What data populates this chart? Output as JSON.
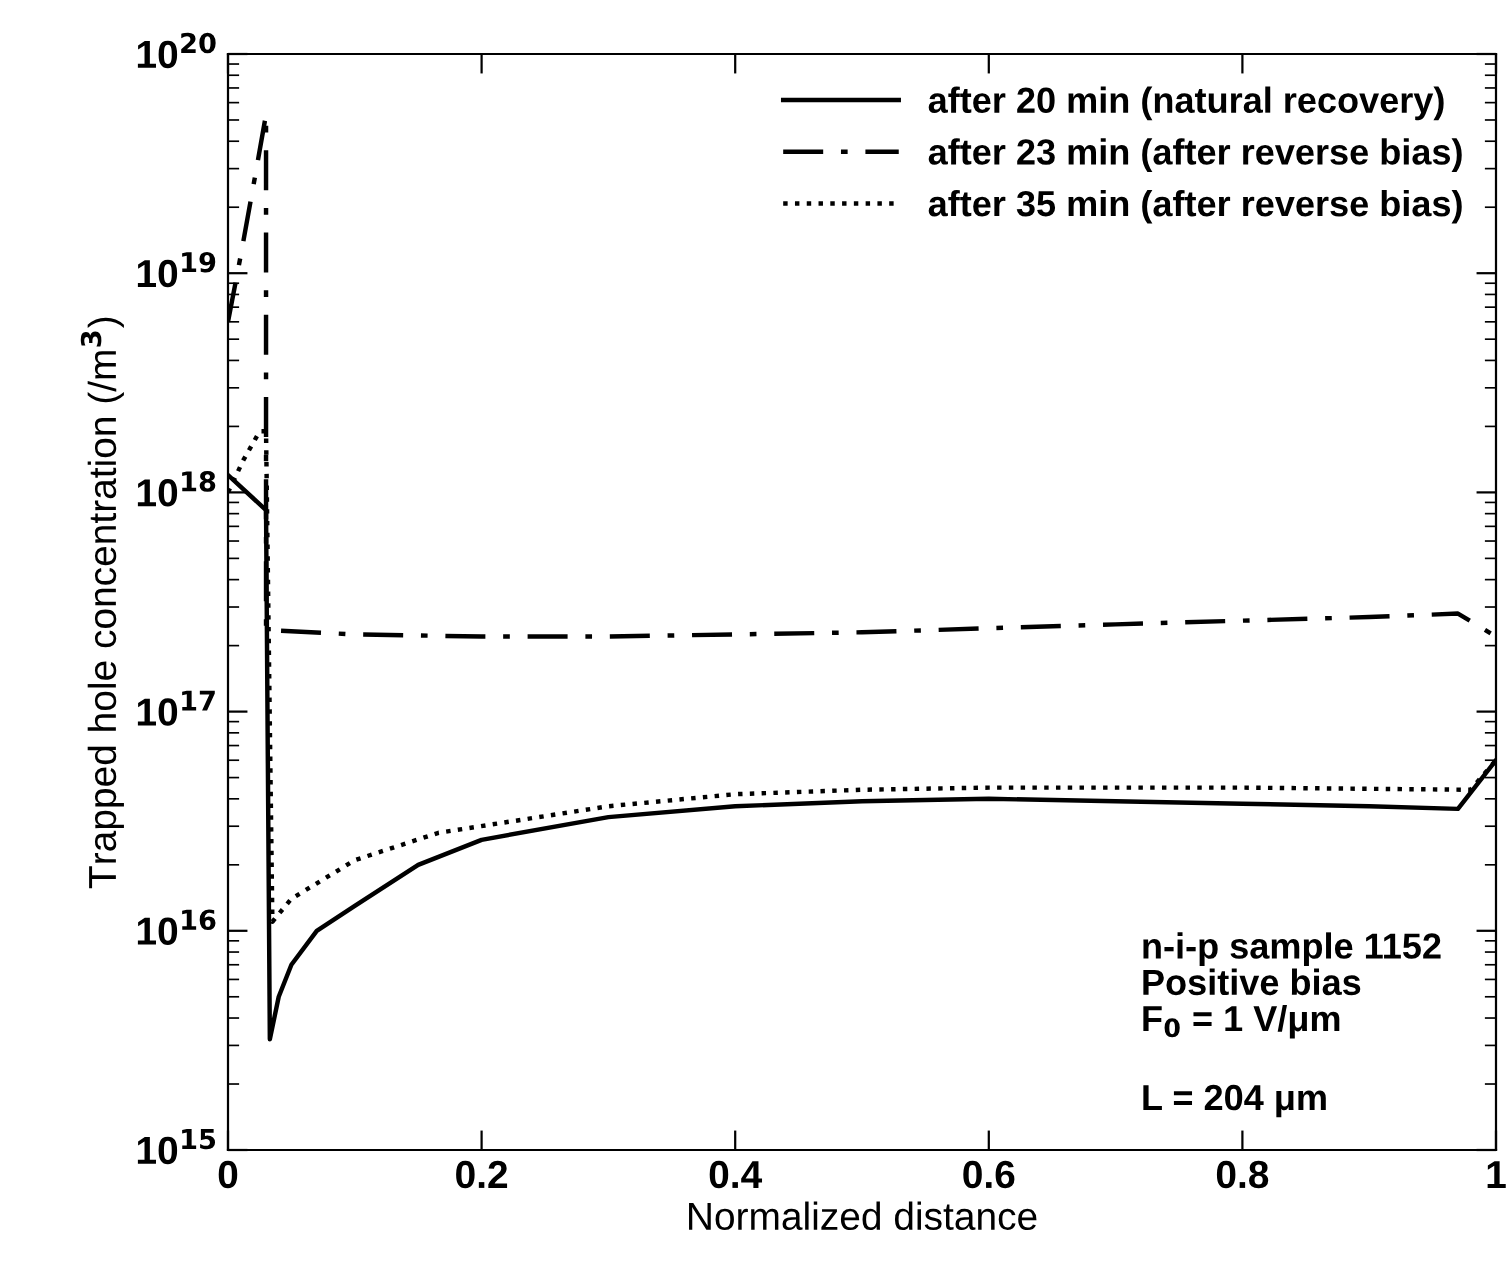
{
  "chart_data": {
    "type": "line",
    "xlabel": "Normalized distance",
    "ylabel": "Trapped hole concentration (/m$^{3}$)",
    "log": "y",
    "xlim": [
      0,
      1
    ],
    "xticks": [
      0,
      0.2,
      0.4,
      0.6,
      0.8,
      1
    ],
    "ylim": [
      1000000000000000.0,
      1e+20
    ],
    "yticks": [
      {
        "value": 1000000000000000.0,
        "label": "10$^{15}$"
      },
      {
        "value": 1e+16,
        "label": "10$^{16}$"
      },
      {
        "value": 1e+17,
        "label": "10$^{17}$"
      },
      {
        "value": 1e+18,
        "label": "10$^{18}$"
      },
      {
        "value": 1e+19,
        "label": "10$^{19}$"
      },
      {
        "value": 1e+20,
        "label": "10$^{20}$"
      }
    ],
    "grid": false,
    "legend": "top right",
    "marker": "none",
    "series": [
      {
        "name": "after 20 min (natural recovery)",
        "color": "#000000",
        "line_style": "solid",
        "x": [
          0,
          0.03,
          0.033,
          0.04,
          0.05,
          0.07,
          0.1,
          0.15,
          0.2,
          0.3,
          0.4,
          0.5,
          0.6,
          0.7,
          0.8,
          0.9,
          0.97,
          1.0
        ],
        "values": [
          1.2e+18,
          8.3e+17,
          3200000000000000.0,
          5000000000000000.0,
          7000000000000000.0,
          1e+16,
          1.3e+16,
          2e+16,
          2.6e+16,
          3.3e+16,
          3.7e+16,
          3.9e+16,
          4e+16,
          3.9e+16,
          3.8e+16,
          3.7e+16,
          3.6e+16,
          6e+16
        ]
      },
      {
        "name": "after 23 min (after reverse bias)",
        "color": "#000000",
        "line_style": "dashdot",
        "x": [
          0,
          0.01,
          0.02,
          0.03,
          0.03,
          0.035,
          0.1,
          0.2,
          0.3,
          0.4,
          0.5,
          0.6,
          0.7,
          0.8,
          0.9,
          0.97,
          1.0
        ],
        "values": [
          6e+18,
          1.2e+19,
          2.5e+19,
          5.3e+19,
          2.4e+17,
          2.35e+17,
          2.25e+17,
          2.2e+17,
          2.2e+17,
          2.25e+17,
          2.3e+17,
          2.4e+17,
          2.5e+17,
          2.6e+17,
          2.7e+17,
          2.8e+17,
          2.2e+17
        ]
      },
      {
        "name": "after 35 min (after reverse bias)",
        "color": "#000000",
        "line_style": "dotted",
        "x": [
          0,
          0.012,
          0.025,
          0.03,
          0.035,
          0.05,
          0.1,
          0.166,
          0.3,
          0.4,
          0.5,
          0.6,
          0.8,
          0.98,
          1.0
        ],
        "values": [
          1e+18,
          1.4e+18,
          1.9e+18,
          1.9e+18,
          1.1e+16,
          1.4e+16,
          2.1e+16,
          2.8e+16,
          3.7e+16,
          4.2e+16,
          4.4e+16,
          4.5e+16,
          4.5e+16,
          4.4e+16,
          6e+16
        ]
      }
    ],
    "annotations": [
      {
        "text": "n-i-p sample 1152\nPositive bias\nF$_{0}$ = 1 V/μm"
      },
      {
        "text": "L = 204 μm"
      }
    ]
  }
}
